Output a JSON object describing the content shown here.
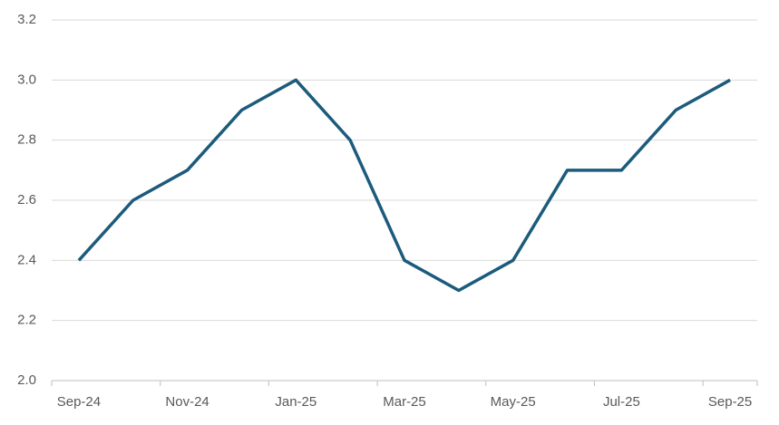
{
  "chart_data": {
    "type": "line",
    "categories": [
      "Sep-24",
      null,
      "Nov-24",
      null,
      "Jan-25",
      null,
      "Mar-25",
      null,
      "May-25",
      null,
      "Jul-25",
      null,
      "Sep-25"
    ],
    "series": [
      {
        "color": "#1c5b7b",
        "values": [
          2.4,
          2.6,
          2.7,
          2.9,
          3.0,
          2.8,
          2.4,
          2.3,
          2.4,
          2.7,
          2.7,
          2.9,
          3.0
        ]
      }
    ],
    "ylim": [
      2.0,
      3.2
    ],
    "yticks": [
      {
        "value": 2.0,
        "label": "2.0"
      },
      2.2,
      2.4,
      2.6,
      2.8,
      {
        "value": 3.0,
        "label": "3.0"
      },
      3.2
    ],
    "grid": true
  }
}
